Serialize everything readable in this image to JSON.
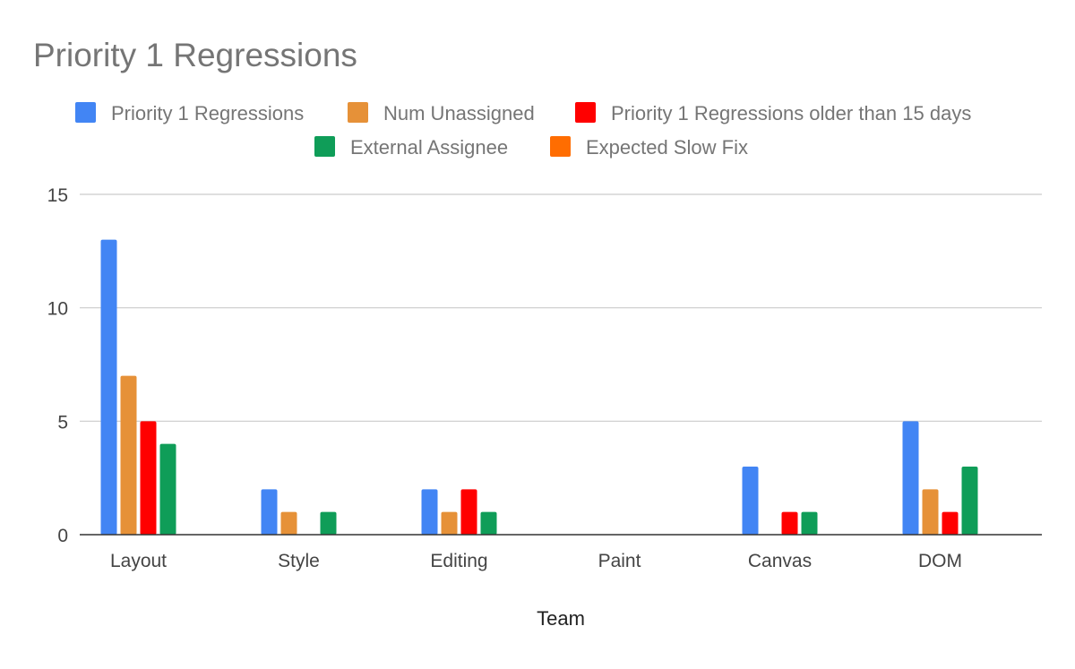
{
  "chart_data": {
    "type": "bar",
    "title": "Priority 1 Regressions",
    "xlabel": "Team",
    "ylabel": "",
    "categories": [
      "Layout",
      "Style",
      "Editing",
      "Paint",
      "Canvas",
      "DOM"
    ],
    "ylim": [
      0,
      15
    ],
    "yticks": [
      0,
      5,
      10,
      15
    ],
    "grid": true,
    "legend_position": "top",
    "series": [
      {
        "name": "Priority 1 Regressions",
        "color": "#4285f4",
        "values": [
          13,
          2,
          2,
          0,
          3,
          5
        ]
      },
      {
        "name": "Num Unassigned",
        "color": "#e69138",
        "values": [
          7,
          1,
          1,
          0,
          0,
          2
        ]
      },
      {
        "name": "Priority 1 Regressions older than 15 days",
        "color": "#ff0000",
        "values": [
          5,
          0,
          2,
          0,
          1,
          1
        ]
      },
      {
        "name": "External Assignee",
        "color": "#0f9d58",
        "values": [
          4,
          1,
          1,
          0,
          1,
          3
        ]
      },
      {
        "name": "Expected Slow Fix",
        "color": "#ff6d01",
        "values": [
          0,
          0,
          0,
          0,
          0,
          0
        ]
      }
    ]
  }
}
